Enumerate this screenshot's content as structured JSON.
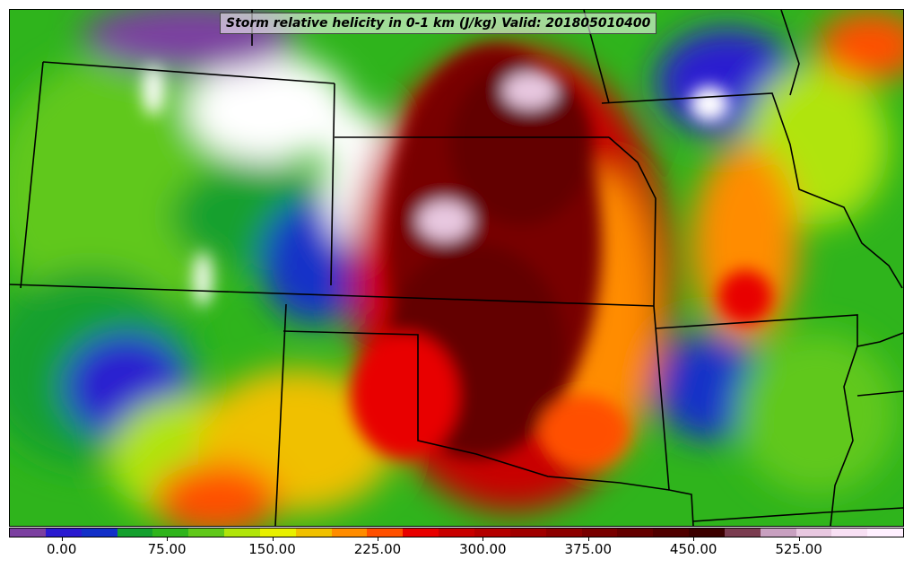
{
  "title": "Storm relative helicity in 0-1 km (J/kg) Valid: 201805010400",
  "colorbar": {
    "colors": [
      "#7b3fa0",
      "#2a1ad0",
      "#1230c8",
      "#14a02e",
      "#2fb41c",
      "#60c81a",
      "#b0e40a",
      "#e8f000",
      "#f0c000",
      "#ff8c00",
      "#ff5000",
      "#e80000",
      "#c80000",
      "#b40000",
      "#a00000",
      "#8c0000",
      "#780000",
      "#640000",
      "#500000",
      "#3c0000",
      "#7a3c50",
      "#c8a0c0",
      "#e8c8e0",
      "#f8e0f4",
      "#fff0ff"
    ],
    "tick_labels": [
      "0.00",
      "75.00",
      "150.00",
      "225.00",
      "300.00",
      "375.00",
      "450.00",
      "525.00"
    ],
    "tick_values": [
      0,
      75,
      150,
      225,
      300,
      375,
      450,
      525
    ],
    "range": [
      -37.5,
      600
    ]
  }
}
